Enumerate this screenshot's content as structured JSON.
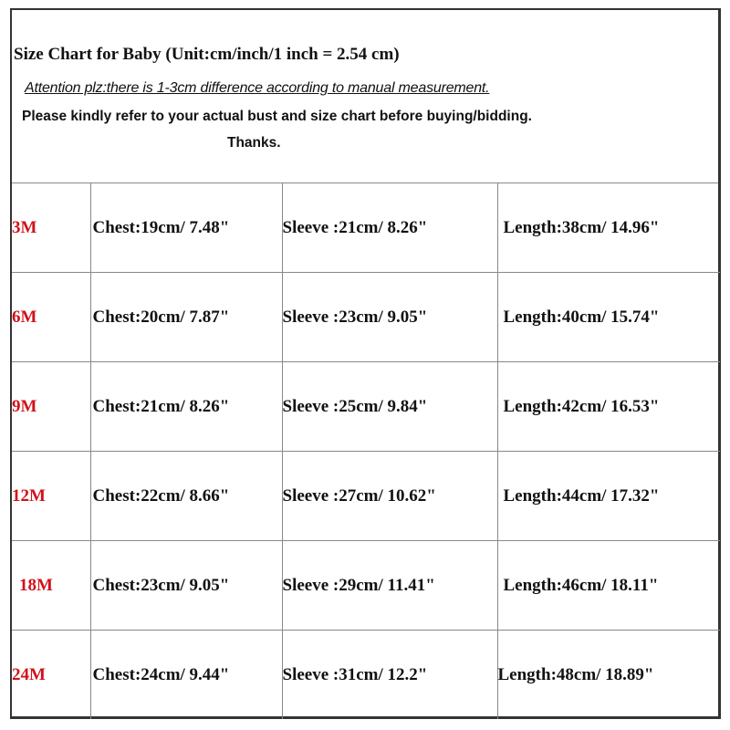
{
  "header": {
    "title": "Size Chart for Baby (Unit:cm/inch/1 inch = 2.54 cm)",
    "attention": "Attention plz:there is 1-3cm difference according to manual measurement.",
    "note": "Please kindly refer to your actual bust and size chart before buying/bidding.",
    "thanks": "Thanks."
  },
  "colors": {
    "size_label": "#d0121b",
    "text": "#111111",
    "border": "#888888"
  },
  "rows": [
    {
      "size": "3M",
      "chest": "Chest:19cm/ 7.48\"",
      "sleeve": "Sleeve :21cm/ 8.26\"",
      "length": "Length:38cm/ 14.96\""
    },
    {
      "size": "6M",
      "chest": "Chest:20cm/ 7.87\"",
      "sleeve": "Sleeve :23cm/ 9.05\"",
      "length": "Length:40cm/ 15.74\""
    },
    {
      "size": "9M",
      "chest": "Chest:21cm/ 8.26\"",
      "sleeve": "Sleeve :25cm/ 9.84\"",
      "length": "Length:42cm/ 16.53\""
    },
    {
      "size": "12M",
      "chest": "Chest:22cm/ 8.66\"",
      "sleeve": "Sleeve :27cm/ 10.62\"",
      "length": "Length:44cm/ 17.32\""
    },
    {
      "size": "18M",
      "chest": "Chest:23cm/ 9.05\"",
      "sleeve": "Sleeve :29cm/ 11.41\"",
      "length": "Length:46cm/ 18.11\""
    },
    {
      "size": "24M",
      "chest": "Chest:24cm/ 9.44\"",
      "sleeve": "Sleeve :31cm/ 12.2\"",
      "length": "Length:48cm/ 18.89\""
    }
  ]
}
